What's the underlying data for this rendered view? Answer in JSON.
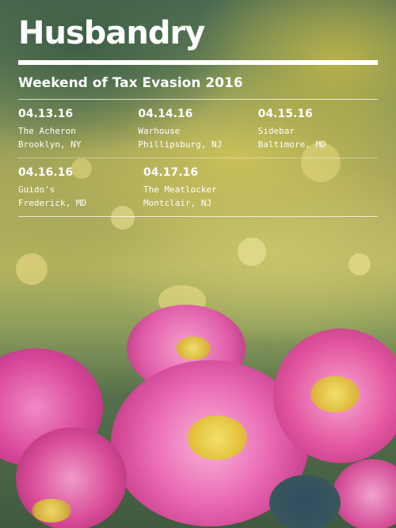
{
  "brand": "Husbandry",
  "tour_title": "Weekend of Tax Evasion 2016",
  "shows": [
    {
      "date": "04.13.16",
      "venue": "The Acheron",
      "city": "Brooklyn, NY"
    },
    {
      "date": "04.14.16",
      "venue": "Warhouse",
      "city": "Phillipsburg, NJ"
    },
    {
      "date": "04.15.16",
      "venue": "Sidebar",
      "city": "Baltimore, MD"
    },
    {
      "date": "04.16.16",
      "venue": "Guido's",
      "city": "Frederick, MD"
    },
    {
      "date": "04.17.16",
      "venue": "The Meatlocker",
      "city": "Montclair, NJ"
    }
  ],
  "colors": {
    "text": "#ffffff",
    "petal": "#e25aa8",
    "flower_center": "#e8d04a"
  }
}
